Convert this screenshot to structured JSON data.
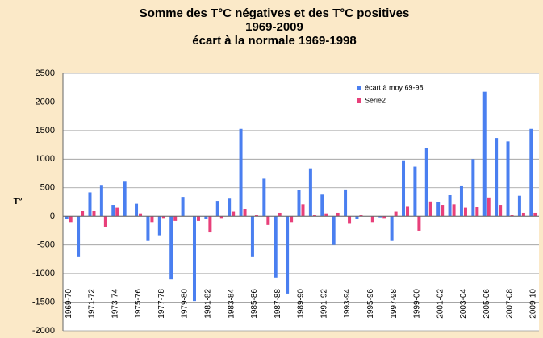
{
  "chart_data": {
    "type": "bar",
    "title": [
      "Somme des T°C négatives et des T°C positives",
      "1969-2009",
      "écart à la normale 1969-1998"
    ],
    "y_label": "T°",
    "categories": [
      "1969-70",
      null,
      "1971-72",
      null,
      "1973-74",
      null,
      "1975-76",
      null,
      "1977-78",
      null,
      "1979-80",
      null,
      "1981-82",
      null,
      "1983-84",
      null,
      "1985-86",
      null,
      "1987-88",
      null,
      "1989-90",
      null,
      "1991-92",
      null,
      "1993-94",
      null,
      "1995-96",
      null,
      "1997-98",
      null,
      "1999-00",
      null,
      "2001-02",
      null,
      "2003-04",
      null,
      "2005-06",
      null,
      "2007-08",
      null,
      "2009-10"
    ],
    "series": [
      {
        "name": "écart à moy 69-98",
        "color": "#4a7ff0",
        "values": [
          -50,
          -700,
          420,
          550,
          200,
          620,
          220,
          -430,
          -330,
          -1100,
          340,
          -1480,
          -50,
          270,
          310,
          1530,
          -700,
          660,
          -1080,
          -1350,
          460,
          840,
          380,
          -500,
          470,
          -50,
          0,
          -20,
          -430,
          980,
          870,
          1200,
          250,
          370,
          540,
          1000,
          2180,
          1370,
          1310,
          360,
          1530
        ]
      },
      {
        "name": "Série2",
        "color": "#e8407a",
        "values": [
          -100,
          100,
          100,
          -180,
          150,
          0,
          50,
          -100,
          -30,
          -80,
          0,
          -80,
          -280,
          -30,
          80,
          130,
          20,
          -150,
          60,
          -100,
          210,
          30,
          50,
          60,
          -130,
          30,
          -100,
          -30,
          80,
          180,
          -250,
          260,
          200,
          210,
          150,
          160,
          330,
          200,
          20,
          60,
          60
        ]
      }
    ],
    "ylim": [
      -2000,
      2500
    ],
    "yticks": [
      -2000,
      -1500,
      -1000,
      -500,
      0,
      500,
      1000,
      1500,
      2000,
      2500
    ],
    "grid": true,
    "legend": "upper right"
  }
}
